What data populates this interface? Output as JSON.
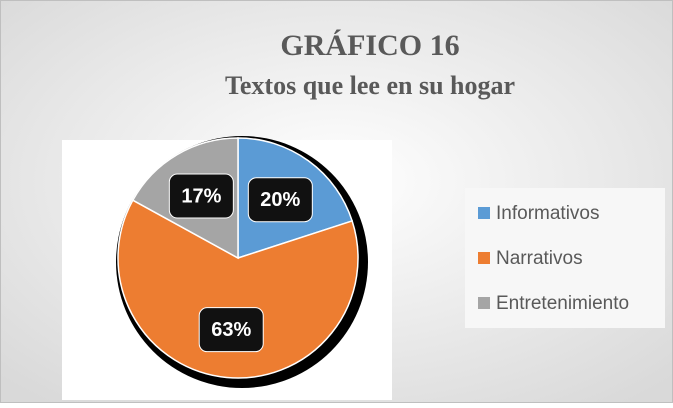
{
  "chart_data": {
    "type": "pie",
    "title": "GRÁFICO 16",
    "subtitle": "Textos que lee en su hogar",
    "categories": [
      "Informativos",
      "Narrativos",
      "Entretenimiento"
    ],
    "values": [
      20,
      63,
      17
    ],
    "value_labels": [
      "20%",
      "63%",
      "17%"
    ],
    "colors": [
      "#5b9bd5",
      "#ed7d31",
      "#a5a5a5"
    ],
    "legend": "right"
  }
}
